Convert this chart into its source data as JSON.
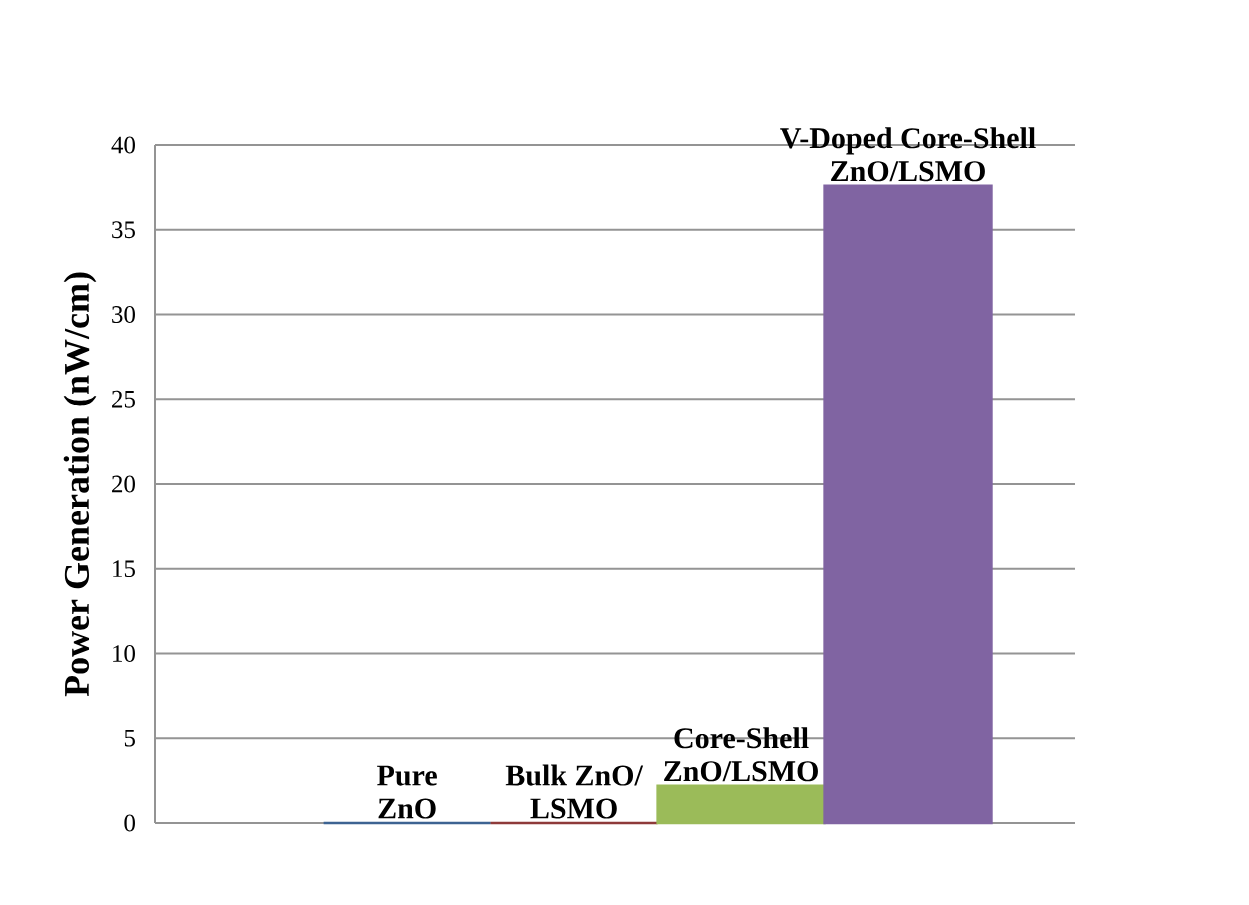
{
  "chart_data": {
    "type": "bar",
    "ylabel": "Power Generation (nW/cm)",
    "categories": [
      "Pure ZnO",
      "Bulk ZnO/LSMO",
      "Core-Shell ZnO/LSMO",
      "V-Doped Core-Shell ZnO/LSMO"
    ],
    "values": [
      0,
      0,
      2.2,
      37.6
    ],
    "colors": [
      "#3d6392",
      "#8e3a3a",
      "#9bbb59",
      "#8064a2"
    ],
    "ylim": [
      0,
      40
    ],
    "yticks": [
      0,
      5,
      10,
      15,
      20,
      25,
      30,
      35,
      40
    ],
    "grid": "y"
  }
}
